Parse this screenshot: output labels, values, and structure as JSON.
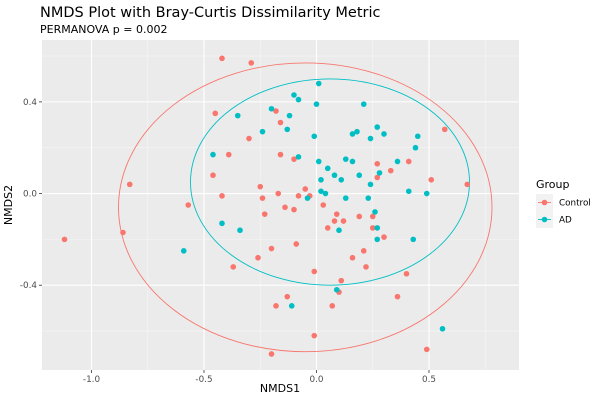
{
  "chart_data": {
    "type": "scatter",
    "title": "NMDS Plot with Bray-Curtis Dissimilarity Metric",
    "subtitle": "PERMANOVA p = 0.002",
    "xlabel": "NMDS1",
    "ylabel": "NMDS2",
    "xlim": [
      -1.22,
      0.9
    ],
    "ylim": [
      -0.77,
      0.67
    ],
    "x_ticks": [
      -1.0,
      -0.5,
      0.0,
      0.5
    ],
    "x_tick_labels": [
      "-1.0",
      "-0.5",
      "0.0",
      "0.5"
    ],
    "y_ticks": [
      -0.4,
      0.0,
      0.4
    ],
    "y_tick_labels": [
      "-0.4",
      "0.0",
      "0.4"
    ],
    "grid": true,
    "legend": {
      "title": "Group",
      "position": "right"
    },
    "series": [
      {
        "name": "Control",
        "color": "#F8766D",
        "ellipse": {
          "center": [
            -0.05,
            -0.06
          ],
          "rx": 0.83,
          "ry": 0.63
        },
        "points": [
          [
            -0.42,
            0.59
          ],
          [
            -0.29,
            0.57
          ],
          [
            -0.45,
            0.35
          ],
          [
            -0.18,
            0.36
          ],
          [
            -0.16,
            0.31
          ],
          [
            -0.3,
            0.24
          ],
          [
            -0.39,
            0.17
          ],
          [
            -0.16,
            0.17
          ],
          [
            -0.1,
            0.15
          ],
          [
            -0.46,
            0.08
          ],
          [
            -0.57,
            -0.05
          ],
          [
            -0.83,
            0.04
          ],
          [
            -1.12,
            -0.2
          ],
          [
            -0.86,
            -0.17
          ],
          [
            -0.42,
            -0.01
          ],
          [
            -0.25,
            0.03
          ],
          [
            -0.17,
            0.0
          ],
          [
            -0.08,
            -0.01
          ],
          [
            -0.05,
            0.02
          ],
          [
            -0.1,
            -0.07
          ],
          [
            -0.23,
            -0.09
          ],
          [
            -0.24,
            -0.02
          ],
          [
            -0.14,
            -0.06
          ],
          [
            -0.03,
            -0.01
          ],
          [
            0.03,
            -0.05
          ],
          [
            0.09,
            -0.09
          ],
          [
            0.08,
            -0.12
          ],
          [
            0.05,
            -0.15
          ],
          [
            0.12,
            -0.12
          ],
          [
            0.19,
            -0.1
          ],
          [
            0.25,
            -0.1
          ],
          [
            0.25,
            -0.15
          ],
          [
            0.3,
            -0.19
          ],
          [
            0.27,
            0.13
          ],
          [
            0.27,
            0.07
          ],
          [
            0.33,
            0.1
          ],
          [
            0.41,
            0.14
          ],
          [
            0.51,
            0.06
          ],
          [
            0.57,
            0.28
          ],
          [
            0.67,
            0.04
          ],
          [
            0.4,
            -0.35
          ],
          [
            0.22,
            -0.32
          ],
          [
            0.11,
            -0.38
          ],
          [
            -0.01,
            -0.34
          ],
          [
            -0.2,
            -0.24
          ],
          [
            -0.26,
            -0.28
          ],
          [
            -0.37,
            -0.32
          ],
          [
            -0.09,
            -0.22
          ],
          [
            -0.18,
            -0.49
          ],
          [
            -0.13,
            -0.45
          ],
          [
            0.07,
            -0.49
          ],
          [
            0.21,
            -0.25
          ],
          [
            0.16,
            -0.28
          ],
          [
            -0.01,
            -0.62
          ],
          [
            -0.2,
            -0.7
          ],
          [
            0.49,
            -0.68
          ],
          [
            0.36,
            -0.45
          ],
          [
            0.1,
            -0.43
          ]
        ]
      },
      {
        "name": "AD",
        "color": "#00BFC4",
        "ellipse": {
          "center": [
            0.06,
            0.05
          ],
          "rx": 0.62,
          "ry": 0.45
        },
        "points": [
          [
            0.01,
            0.48
          ],
          [
            -0.1,
            0.43
          ],
          [
            -0.08,
            0.41
          ],
          [
            0.0,
            0.39
          ],
          [
            0.21,
            0.39
          ],
          [
            -0.2,
            0.37
          ],
          [
            -0.12,
            0.34
          ],
          [
            0.27,
            0.29
          ],
          [
            -0.35,
            0.34
          ],
          [
            -0.13,
            0.28
          ],
          [
            -0.24,
            0.27
          ],
          [
            -0.01,
            0.25
          ],
          [
            0.16,
            0.26
          ],
          [
            0.18,
            0.27
          ],
          [
            0.3,
            0.26
          ],
          [
            0.45,
            0.25
          ],
          [
            0.24,
            0.24
          ],
          [
            0.44,
            0.2
          ],
          [
            -0.46,
            0.17
          ],
          [
            0.13,
            0.15
          ],
          [
            0.16,
            0.14
          ],
          [
            0.36,
            0.14
          ],
          [
            -0.08,
            0.16
          ],
          [
            0.01,
            0.14
          ],
          [
            0.05,
            0.11
          ],
          [
            0.19,
            0.08
          ],
          [
            0.28,
            0.09
          ],
          [
            0.08,
            0.08
          ],
          [
            0.02,
            0.06
          ],
          [
            0.11,
            0.06
          ],
          [
            0.24,
            0.04
          ],
          [
            0.41,
            0.01
          ],
          [
            0.49,
            0.0
          ],
          [
            0.02,
            0.01
          ],
          [
            0.04,
            0.0
          ],
          [
            0.13,
            -0.02
          ],
          [
            -0.04,
            -0.02
          ],
          [
            0.23,
            -0.02
          ],
          [
            0.26,
            -0.08
          ],
          [
            -0.34,
            -0.16
          ],
          [
            -0.42,
            -0.13
          ],
          [
            -0.59,
            -0.25
          ],
          [
            0.1,
            -0.16
          ],
          [
            0.27,
            -0.2
          ],
          [
            0.43,
            -0.2
          ],
          [
            -0.11,
            -0.49
          ],
          [
            0.56,
            -0.59
          ],
          [
            0.09,
            -0.42
          ],
          [
            0.27,
            -0.15
          ]
        ]
      }
    ]
  }
}
